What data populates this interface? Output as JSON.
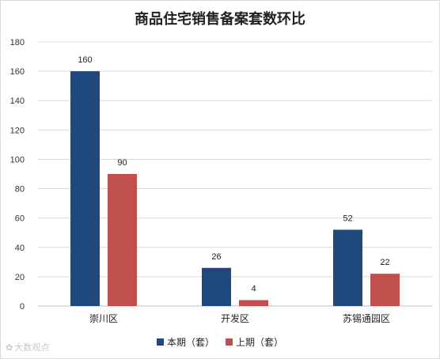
{
  "chart_data": {
    "type": "bar",
    "title": "商品住宅销售备案套数环比",
    "categories": [
      "崇川区",
      "开发区",
      "苏锡通园区"
    ],
    "series": [
      {
        "name": "本期（套）",
        "values": [
          160,
          26,
          52
        ],
        "color": "#1f497d"
      },
      {
        "name": "上期（套）",
        "values": [
          90,
          4,
          22
        ],
        "color": "#c0504d"
      }
    ],
    "ylim": [
      0,
      180
    ],
    "yticks": [
      0,
      20,
      40,
      60,
      80,
      100,
      120,
      140,
      160,
      180
    ],
    "grid": true,
    "legend_position": "bottom"
  },
  "watermark": {
    "text": "大数观点",
    "icon": "weibo-logo-icon"
  }
}
